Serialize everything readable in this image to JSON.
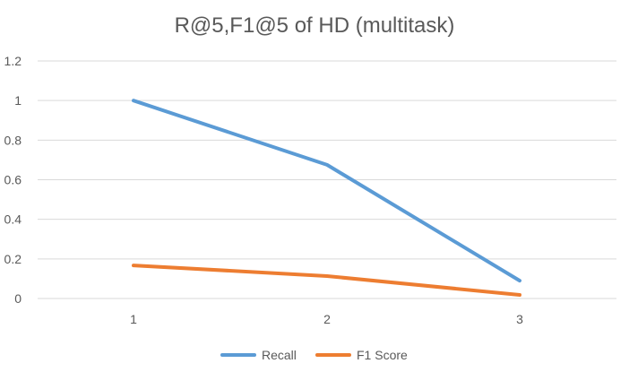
{
  "chart_data": {
    "type": "line",
    "title": "R@5,F1@5 of HD (multitask)",
    "xlabel": "",
    "ylabel": "",
    "categories": [
      "1",
      "2",
      "3"
    ],
    "ylim": [
      0,
      1.2
    ],
    "yticks": [
      "0",
      "0.2",
      "0.4",
      "0.6",
      "0.8",
      "1",
      "1.2"
    ],
    "grid": true,
    "legend_position": "bottom",
    "series": [
      {
        "name": "Recall",
        "values": [
          1.0,
          0.675,
          0.09
        ],
        "color": "#5b9bd5"
      },
      {
        "name": "F1 Score",
        "values": [
          0.167,
          0.113,
          0.018
        ],
        "color": "#ed7d31"
      }
    ]
  }
}
